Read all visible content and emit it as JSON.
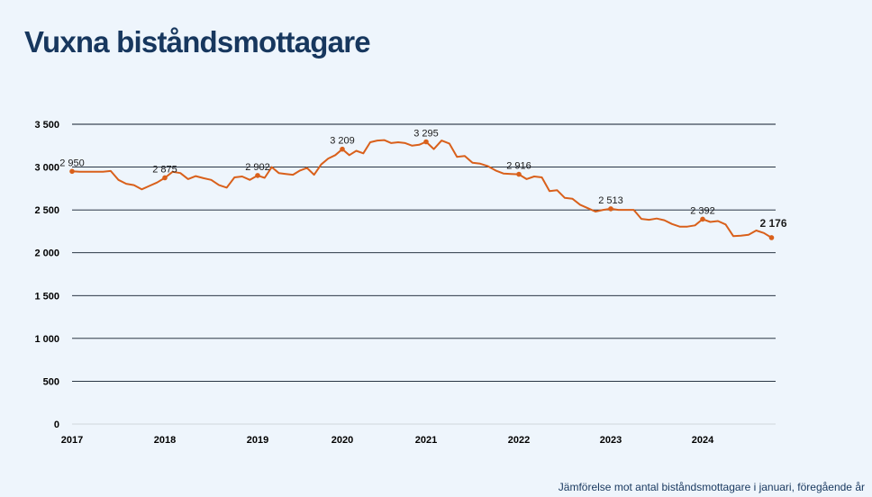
{
  "page": {
    "title": "Vuxna biståndsmottagare",
    "footnote": "Jämförelse mot antal biståndsmottagare i januari, föregående år"
  },
  "colors": {
    "background": "#eef5fc",
    "title": "#17375e",
    "line": "#d9601b",
    "gridline": "#0d1b2a"
  },
  "chart_data": {
    "type": "line",
    "title": "Vuxna biståndsmottagare",
    "xlabel": "",
    "ylabel": "",
    "ylim": [
      0,
      3500
    ],
    "yticks": [
      0,
      500,
      1000,
      1500,
      2000,
      2500,
      3000,
      3500
    ],
    "ytick_labels": [
      "0",
      "500",
      "1 000",
      "1 500",
      "2 000",
      "2 500",
      "3 000",
      "3 500"
    ],
    "xticks": [
      "2017",
      "2018",
      "2019",
      "2020",
      "2021",
      "2022",
      "2023",
      "2024"
    ],
    "grid": true,
    "legend": "none",
    "series": [
      {
        "start": "2017-01",
        "frequency": "monthly",
        "values": [
          2950,
          2945,
          2945,
          2945,
          2945,
          2955,
          2850,
          2805,
          2790,
          2740,
          2780,
          2820,
          2875,
          2945,
          2930,
          2860,
          2895,
          2870,
          2850,
          2790,
          2760,
          2880,
          2890,
          2850,
          2902,
          2875,
          3000,
          2930,
          2920,
          2910,
          2960,
          2990,
          2910,
          3030,
          3100,
          3140,
          3209,
          3140,
          3190,
          3160,
          3290,
          3310,
          3315,
          3280,
          3290,
          3280,
          3250,
          3260,
          3295,
          3210,
          3310,
          3275,
          3120,
          3130,
          3050,
          3040,
          3010,
          2960,
          2925,
          2920,
          2916,
          2860,
          2890,
          2880,
          2720,
          2730,
          2640,
          2630,
          2560,
          2520,
          2480,
          2500,
          2513,
          2500,
          2500,
          2500,
          2395,
          2385,
          2400,
          2380,
          2335,
          2305,
          2305,
          2320,
          2392,
          2360,
          2370,
          2330,
          2195,
          2200,
          2210,
          2260,
          2230,
          2176
        ]
      }
    ],
    "annotations": [
      {
        "date": "2017-01",
        "label": "2 950"
      },
      {
        "date": "2018-01",
        "label": "2 875"
      },
      {
        "date": "2019-01",
        "label": "2 902"
      },
      {
        "date": "2020-01",
        "label": "3 209"
      },
      {
        "date": "2021-01",
        "label": "3 295"
      },
      {
        "date": "2022-01",
        "label": "2 916"
      },
      {
        "date": "2023-01",
        "label": "2 513"
      },
      {
        "date": "2024-01",
        "label": "2 392"
      },
      {
        "date": "2024-10",
        "label": "2 176",
        "emphasis": "bold"
      }
    ]
  }
}
